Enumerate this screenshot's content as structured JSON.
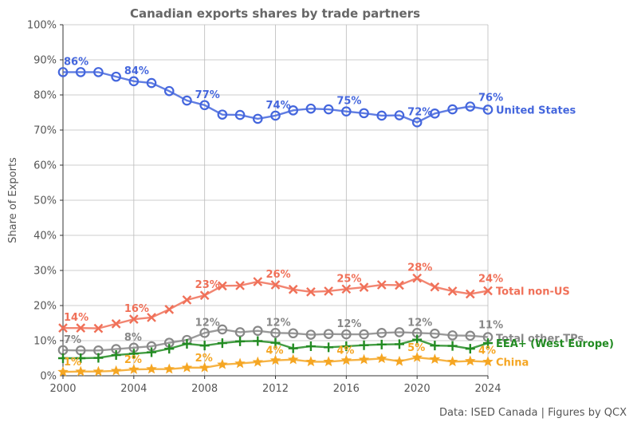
{
  "chart_data": {
    "type": "line",
    "title": "Canadian exports shares by trade partners",
    "ylabel": "Share of Exports",
    "xlabel": "",
    "source": "Data: ISED Canada | Figures by QCX",
    "xlim": [
      2000,
      2024
    ],
    "ylim": [
      0,
      100
    ],
    "xticks": [
      "2000",
      "2004",
      "2008",
      "2012",
      "2016",
      "2020",
      "2024"
    ],
    "yticks": [
      "0%",
      "10%",
      "20%",
      "30%",
      "40%",
      "50%",
      "60%",
      "70%",
      "80%",
      "90%",
      "100%"
    ],
    "grid": true,
    "x": [
      2000,
      2001,
      2002,
      2003,
      2004,
      2005,
      2006,
      2007,
      2008,
      2009,
      2010,
      2011,
      2012,
      2013,
      2014,
      2015,
      2016,
      2017,
      2018,
      2019,
      2020,
      2021,
      2022,
      2023,
      2024
    ],
    "series": [
      {
        "name": "United States",
        "color": "#4466dd",
        "marker": "circle",
        "values": [
          86.5,
          86.5,
          86.5,
          85.2,
          83.9,
          83.4,
          81.1,
          78.4,
          77.1,
          74.4,
          74.3,
          73.2,
          74.1,
          75.6,
          76.1,
          75.9,
          75.3,
          74.8,
          74.1,
          74.2,
          72.2,
          74.7,
          75.9,
          76.7,
          75.8
        ],
        "label_values": [
          "86%",
          "84%",
          "77%",
          "74%",
          "75%",
          "72%",
          "76%"
        ]
      },
      {
        "name": "Total non-US",
        "color": "#f07058",
        "marker": "x",
        "values": [
          13.6,
          13.6,
          13.5,
          14.8,
          16.1,
          16.6,
          18.9,
          21.6,
          22.9,
          25.6,
          25.7,
          26.8,
          25.9,
          24.6,
          23.9,
          24.1,
          24.7,
          25.2,
          25.9,
          25.8,
          27.8,
          25.3,
          24.1,
          23.3,
          24.2
        ],
        "label_values": [
          "14%",
          "16%",
          "23%",
          "26%",
          "25%",
          "28%",
          "24%"
        ]
      },
      {
        "name": "Total other TPs",
        "color": "#888888",
        "marker": "hollow-circle",
        "values": [
          7.3,
          7.2,
          7.2,
          7.6,
          8.0,
          8.4,
          9.4,
          10.2,
          12.2,
          13.2,
          12.4,
          12.8,
          12.2,
          12.1,
          11.7,
          11.9,
          11.8,
          11.8,
          12.2,
          12.4,
          12.2,
          12.0,
          11.5,
          11.4,
          11.0
        ],
        "label_values": [
          "7%",
          "8%",
          "12%",
          "12%",
          "12%",
          "12%",
          "11%"
        ]
      },
      {
        "name": "EEA+ (West Europe)",
        "color": "#228b22",
        "marker": "plus",
        "values": [
          5.0,
          5.0,
          5.1,
          5.9,
          6.3,
          6.7,
          7.7,
          9.1,
          8.6,
          9.3,
          9.8,
          9.9,
          9.4,
          7.8,
          8.4,
          8.1,
          8.4,
          8.7,
          8.9,
          9.0,
          10.3,
          8.6,
          8.5,
          7.7,
          9.3
        ],
        "label_values": []
      },
      {
        "name": "China",
        "color": "#f5a623",
        "marker": "star",
        "values": [
          1.1,
          1.2,
          1.2,
          1.4,
          1.8,
          1.9,
          1.9,
          2.3,
          2.3,
          3.2,
          3.5,
          3.9,
          4.4,
          4.6,
          4.0,
          4.0,
          4.4,
          4.6,
          4.9,
          4.1,
          5.2,
          4.7,
          4.0,
          4.2,
          4.0
        ],
        "label_values": [
          "1%",
          "2%",
          "2%",
          "4%",
          "4%",
          "5%",
          "4%"
        ]
      }
    ],
    "label_years": [
      2000,
      2004,
      2008,
      2012,
      2016,
      2020,
      2024
    ]
  }
}
